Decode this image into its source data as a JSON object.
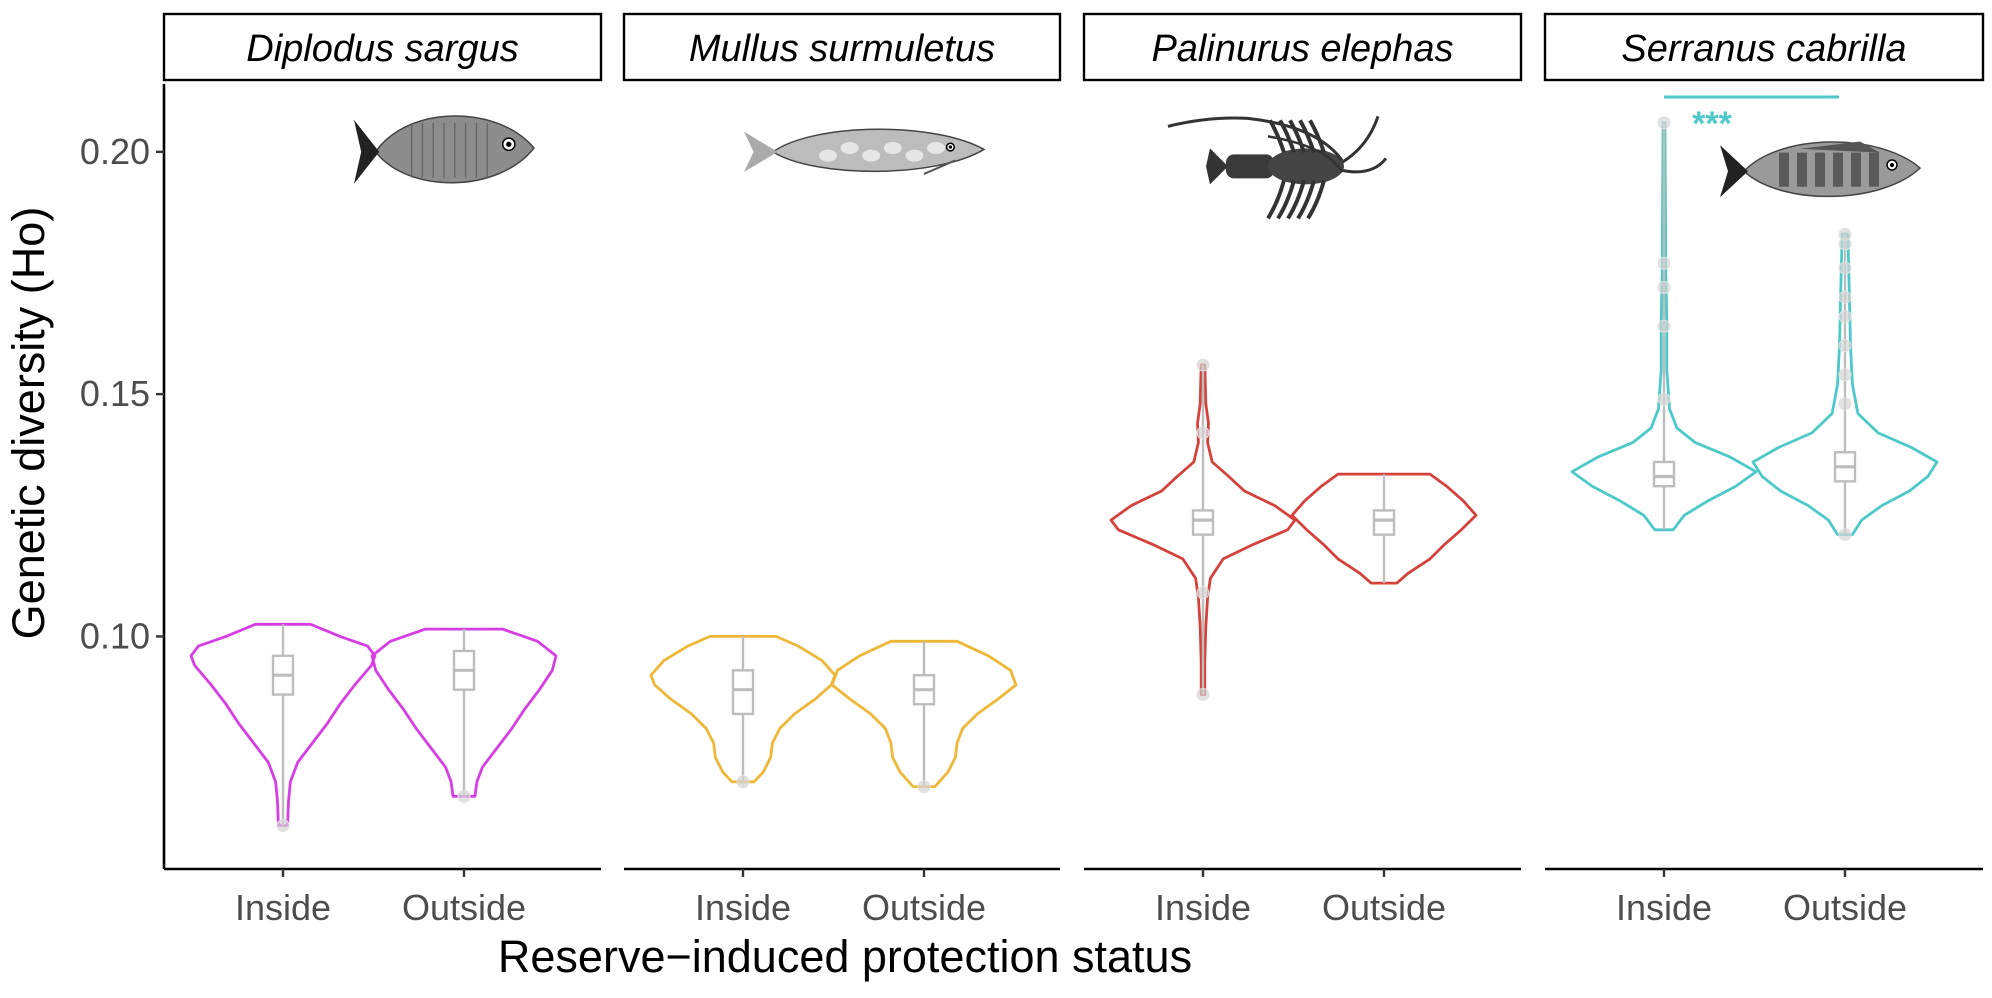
{
  "chart_data": {
    "type": "violin",
    "ylabel": "Genetic diversity (Ho)",
    "xlabel": "Reserve−induced protection status",
    "categories": [
      "Inside",
      "Outside"
    ],
    "ylim": [
      0.052,
      0.214
    ],
    "yticks": [
      0.1,
      0.15,
      0.2
    ],
    "ytick_labels": [
      "0.10",
      "0.15",
      "0.20"
    ],
    "grid": false,
    "panels": [
      {
        "species": "Diplodus sargus",
        "color": "#d63ee3",
        "silhouette": "fish-deep",
        "groups": [
          {
            "group": "Inside",
            "min": 0.061,
            "q1": 0.088,
            "median": 0.092,
            "q3": 0.096,
            "max": 0.1025,
            "outliers": [
              0.061
            ],
            "density": [
              [
                0.061,
                0.05
              ],
              [
                0.066,
                0.06
              ],
              [
                0.07,
                0.08
              ],
              [
                0.074,
                0.16
              ],
              [
                0.078,
                0.32
              ],
              [
                0.082,
                0.48
              ],
              [
                0.086,
                0.62
              ],
              [
                0.09,
                0.78
              ],
              [
                0.094,
                0.96
              ],
              [
                0.096,
                1.0
              ],
              [
                0.098,
                0.92
              ],
              [
                0.1,
                0.62
              ],
              [
                0.1025,
                0.3
              ]
            ]
          },
          {
            "group": "Outside",
            "min": 0.067,
            "q1": 0.089,
            "median": 0.093,
            "q3": 0.097,
            "max": 0.1015,
            "outliers": [
              0.067
            ],
            "density": [
              [
                0.067,
                0.12
              ],
              [
                0.07,
                0.14
              ],
              [
                0.073,
                0.2
              ],
              [
                0.077,
                0.36
              ],
              [
                0.081,
                0.52
              ],
              [
                0.085,
                0.66
              ],
              [
                0.089,
                0.82
              ],
              [
                0.093,
                0.96
              ],
              [
                0.096,
                1.0
              ],
              [
                0.099,
                0.8
              ],
              [
                0.1015,
                0.42
              ]
            ]
          }
        ]
      },
      {
        "species": "Mullus surmuletus",
        "color": "#efb738",
        "silhouette": "fish-long",
        "groups": [
          {
            "group": "Inside",
            "min": 0.07,
            "q1": 0.084,
            "median": 0.089,
            "q3": 0.093,
            "max": 0.1,
            "outliers": [
              0.07
            ],
            "density": [
              [
                0.07,
                0.12
              ],
              [
                0.072,
                0.22
              ],
              [
                0.075,
                0.3
              ],
              [
                0.078,
                0.32
              ],
              [
                0.081,
                0.4
              ],
              [
                0.084,
                0.56
              ],
              [
                0.087,
                0.78
              ],
              [
                0.09,
                0.96
              ],
              [
                0.092,
                1.0
              ],
              [
                0.095,
                0.86
              ],
              [
                0.098,
                0.6
              ],
              [
                0.1,
                0.36
              ]
            ]
          },
          {
            "group": "Outside",
            "min": 0.069,
            "q1": 0.086,
            "median": 0.089,
            "q3": 0.092,
            "max": 0.099,
            "outliers": [
              0.069
            ],
            "density": [
              [
                0.069,
                0.12
              ],
              [
                0.072,
                0.26
              ],
              [
                0.075,
                0.34
              ],
              [
                0.078,
                0.36
              ],
              [
                0.081,
                0.42
              ],
              [
                0.084,
                0.58
              ],
              [
                0.087,
                0.8
              ],
              [
                0.09,
                1.0
              ],
              [
                0.093,
                0.94
              ],
              [
                0.096,
                0.7
              ],
              [
                0.099,
                0.36
              ]
            ]
          }
        ]
      },
      {
        "species": "Palinurus elephas",
        "color": "#d4423b",
        "silhouette": "lobster",
        "groups": [
          {
            "group": "Inside",
            "min": 0.088,
            "q1": 0.121,
            "median": 0.124,
            "q3": 0.126,
            "max": 0.156,
            "outliers": [
              0.088,
              0.109,
              0.142,
              0.156
            ],
            "density": [
              [
                0.088,
                0.02
              ],
              [
                0.095,
                0.02
              ],
              [
                0.102,
                0.03
              ],
              [
                0.108,
                0.05
              ],
              [
                0.112,
                0.08
              ],
              [
                0.116,
                0.22
              ],
              [
                0.119,
                0.55
              ],
              [
                0.122,
                0.92
              ],
              [
                0.124,
                1.0
              ],
              [
                0.127,
                0.78
              ],
              [
                0.13,
                0.45
              ],
              [
                0.133,
                0.28
              ],
              [
                0.136,
                0.1
              ],
              [
                0.14,
                0.05
              ],
              [
                0.144,
                0.06
              ],
              [
                0.148,
                0.03
              ],
              [
                0.156,
                0.02
              ]
            ]
          },
          {
            "group": "Outside",
            "min": 0.111,
            "q1": 0.121,
            "median": 0.124,
            "q3": 0.126,
            "max": 0.1335,
            "outliers": [],
            "density": [
              [
                0.111,
                0.14
              ],
              [
                0.113,
                0.26
              ],
              [
                0.116,
                0.5
              ],
              [
                0.119,
                0.66
              ],
              [
                0.122,
                0.84
              ],
              [
                0.125,
                1.0
              ],
              [
                0.128,
                0.86
              ],
              [
                0.131,
                0.68
              ],
              [
                0.1335,
                0.5
              ]
            ]
          }
        ]
      },
      {
        "species": "Serranus cabrilla",
        "color": "#4dc9c9",
        "silhouette": "fish-banded",
        "significance": "***",
        "groups": [
          {
            "group": "Inside",
            "min": 0.122,
            "q1": 0.131,
            "median": 0.133,
            "q3": 0.136,
            "max": 0.206,
            "outliers": [
              0.149,
              0.164,
              0.172,
              0.177,
              0.206
            ],
            "density": [
              [
                0.122,
                0.1
              ],
              [
                0.125,
                0.22
              ],
              [
                0.128,
                0.48
              ],
              [
                0.131,
                0.78
              ],
              [
                0.134,
                1.0
              ],
              [
                0.137,
                0.72
              ],
              [
                0.14,
                0.34
              ],
              [
                0.143,
                0.14
              ],
              [
                0.147,
                0.06
              ],
              [
                0.155,
                0.03
              ],
              [
                0.165,
                0.03
              ],
              [
                0.175,
                0.02
              ],
              [
                0.19,
                0.015
              ],
              [
                0.206,
                0.01
              ]
            ]
          },
          {
            "group": "Outside",
            "min": 0.121,
            "q1": 0.132,
            "median": 0.135,
            "q3": 0.138,
            "max": 0.183,
            "outliers": [
              0.121,
              0.148,
              0.154,
              0.16,
              0.166,
              0.17,
              0.176,
              0.181,
              0.183
            ],
            "density": [
              [
                0.121,
                0.08
              ],
              [
                0.124,
                0.18
              ],
              [
                0.127,
                0.4
              ],
              [
                0.13,
                0.7
              ],
              [
                0.133,
                0.9
              ],
              [
                0.136,
                1.0
              ],
              [
                0.139,
                0.72
              ],
              [
                0.142,
                0.36
              ],
              [
                0.146,
                0.14
              ],
              [
                0.152,
                0.08
              ],
              [
                0.16,
                0.06
              ],
              [
                0.168,
                0.05
              ],
              [
                0.176,
                0.04
              ],
              [
                0.183,
                0.03
              ]
            ]
          }
        ]
      }
    ]
  }
}
